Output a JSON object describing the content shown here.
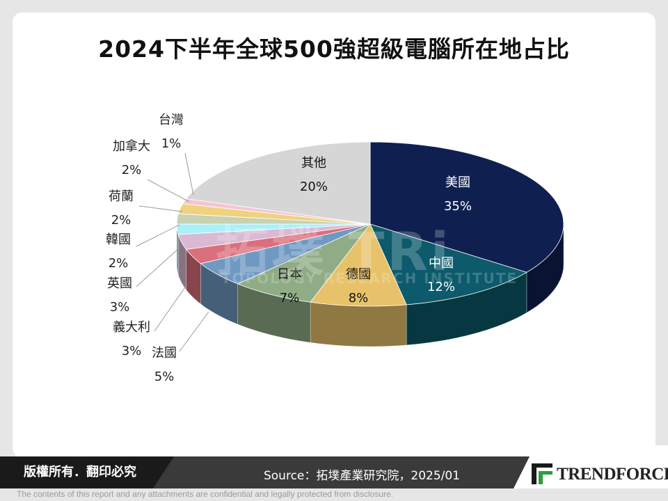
{
  "title": "2024下半年全球500強超級電腦所在地占比",
  "footer": {
    "copyright": "版權所有．翻印必究",
    "source": "Source：拓墣產業研究院，2025/01",
    "logo": "TRENDFORCE",
    "disclaimer": "The contents of this report and any attachments are confidential and legally protected from disclosure."
  },
  "watermark": {
    "main": "拓墣 TRi",
    "sub": "TOPOLOGY RESEARCH INSTITUTE"
  },
  "chart_data": {
    "type": "pie",
    "title": "2024下半年全球500強超級電腦所在地占比",
    "slices": [
      {
        "label": "美國",
        "value": 35,
        "value_label": "35%",
        "color": "#0f2050"
      },
      {
        "label": "中國",
        "value": 12,
        "value_label": "12%",
        "color": "#0c5a6b"
      },
      {
        "label": "德國",
        "value": 8,
        "value_label": "8%",
        "color": "#e7c26a"
      },
      {
        "label": "日本",
        "value": 7,
        "value_label": "7%",
        "color": "#90ac86"
      },
      {
        "label": "法國",
        "value": 5,
        "value_label": "5%",
        "color": "#6f99c2"
      },
      {
        "label": "義大利",
        "value": 3,
        "value_label": "3%",
        "color": "#da6f7d"
      },
      {
        "label": "英國",
        "value": 3,
        "value_label": "3%",
        "color": "#d9b9d3"
      },
      {
        "label": "韓國",
        "value": 2,
        "value_label": "2%",
        "color": "#a9f0fb"
      },
      {
        "label": "荷蘭",
        "value": 2,
        "value_label": "2%",
        "color": "#c8d2b2"
      },
      {
        "label": "加拿大",
        "value": 2,
        "value_label": "2%",
        "color": "#f0d17f"
      },
      {
        "label": "台灣",
        "value": 1,
        "value_label": "1%",
        "color": "#f4c6d2"
      },
      {
        "label": "其他",
        "value": 20,
        "value_label": "20%",
        "color": "#d6d6d6"
      }
    ],
    "start": "12 o'clock, clockwise",
    "style": "3D tilted pie",
    "legend": "none"
  }
}
